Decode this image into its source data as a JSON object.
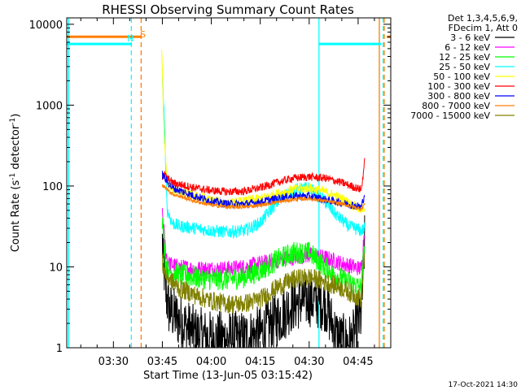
{
  "chart_data": {
    "type": "line",
    "title": "RHESSI Observing Summary Count Rates",
    "xlabel": "Start Time (13-Jun-05 03:15:42)",
    "ylabel_main": "Count Rate (s",
    "ylabel_sup1": "-1",
    "ylabel_mid": " detector",
    "ylabel_sup2": "-1",
    "ylabel_end": ")",
    "yscale": "log",
    "ylim": [
      1,
      12000
    ],
    "xlim_minutes": [
      195.7,
      295.0
    ],
    "xticks": [
      {
        "label": "03:30",
        "value": 210
      },
      {
        "label": "03:45",
        "value": 225
      },
      {
        "label": "04:00",
        "value": 240
      },
      {
        "label": "04:15",
        "value": 255
      },
      {
        "label": "04:30",
        "value": 270
      },
      {
        "label": "04:45",
        "value": 285
      }
    ],
    "yticks": [
      {
        "label": "1",
        "value": 1
      },
      {
        "label": "10",
        "value": 10
      },
      {
        "label": "100",
        "value": 100
      },
      {
        "label": "1000",
        "value": 1000
      },
      {
        "label": "10000",
        "value": 10000
      }
    ],
    "legend_header": [
      "Det 1,3,4,5,6,9,",
      "FDecim 1, Att 0"
    ],
    "legend_placement": "right",
    "series": [
      {
        "name": "3 - 6 keV",
        "color": "#000000",
        "x": [
          225,
          226,
          227,
          230,
          235,
          240,
          245,
          250,
          255,
          260,
          265,
          270,
          275,
          278,
          280,
          283,
          286,
          287
        ],
        "y": [
          20,
          5,
          3,
          2.2,
          1.5,
          1.3,
          1.3,
          1.3,
          1.5,
          2.2,
          3.5,
          4,
          3.5,
          1.5,
          1.2,
          1.2,
          2.5,
          20
        ],
        "noise": 0.35
      },
      {
        "name": "6 - 12 keV",
        "color": "#ff00ff",
        "x": [
          225,
          226,
          227,
          230,
          235,
          240,
          245,
          250,
          255,
          260,
          265,
          270,
          275,
          280,
          286,
          287
        ],
        "y": [
          50,
          15,
          11,
          10,
          9.5,
          9.5,
          9.5,
          10,
          11,
          12,
          13,
          14,
          13,
          11,
          9.5,
          30
        ],
        "noise": 0.1
      },
      {
        "name": "12 - 25 keV",
        "color": "#00ff00",
        "x": [
          225,
          226,
          227,
          230,
          235,
          240,
          245,
          250,
          255,
          260,
          265,
          270,
          275,
          280,
          286,
          287
        ],
        "y": [
          40,
          11,
          9,
          8,
          7.5,
          7,
          7,
          7.5,
          9,
          12,
          15,
          15,
          10,
          7,
          5.5,
          20
        ],
        "noise": 0.14
      },
      {
        "name": "25 - 50 keV",
        "color": "#00ffff",
        "x": [
          225,
          225.7,
          226.5,
          228,
          230,
          235,
          240,
          245,
          250,
          255,
          258,
          262,
          266,
          270,
          274,
          278,
          282,
          286,
          287
        ],
        "y": [
          2500,
          500,
          50,
          35,
          32,
          30,
          28,
          27,
          28,
          35,
          50,
          75,
          90,
          95,
          70,
          45,
          32,
          28,
          30
        ],
        "noise": 0.08
      },
      {
        "name": "50 - 100 keV",
        "color": "#ffff00",
        "x": [
          224.8,
          225.5,
          226.5,
          228,
          235,
          245,
          255,
          260,
          265,
          270,
          275,
          280,
          286,
          287
        ],
        "y": [
          5000,
          500,
          110,
          90,
          75,
          60,
          70,
          80,
          90,
          95,
          85,
          70,
          50,
          55
        ],
        "noise": 0.06
      },
      {
        "name": "100 - 300 keV",
        "color": "#ff0000",
        "x": [
          225,
          225.5,
          226.5,
          228,
          235,
          240,
          245,
          250,
          255,
          260,
          265,
          270,
          275,
          280,
          286,
          287
        ],
        "y": [
          130,
          140,
          125,
          110,
          95,
          88,
          85,
          86,
          95,
          110,
          125,
          130,
          125,
          110,
          90,
          200
        ],
        "noise": 0.05
      },
      {
        "name": "300 - 800 keV",
        "color": "#0000ff",
        "x": [
          225,
          226,
          228,
          235,
          240,
          245,
          250,
          255,
          260,
          265,
          270,
          275,
          280,
          286,
          287
        ],
        "y": [
          140,
          120,
          95,
          75,
          65,
          60,
          60,
          63,
          70,
          75,
          75,
          68,
          62,
          55,
          80
        ],
        "noise": 0.05
      },
      {
        "name": "800 - 7000 keV",
        "color": "#ff7f00",
        "x": [
          225,
          226,
          228,
          235,
          240,
          245,
          250,
          255,
          260,
          265,
          270,
          275,
          280,
          286,
          287
        ],
        "y": [
          100,
          95,
          80,
          65,
          58,
          55,
          55,
          58,
          63,
          68,
          70,
          65,
          60,
          52,
          60
        ],
        "noise": 0.025
      },
      {
        "name": "7000 - 15000 keV",
        "color": "#808000",
        "x": [
          225,
          226,
          228,
          230,
          235,
          240,
          245,
          250,
          255,
          260,
          265,
          270,
          275,
          280,
          286,
          287
        ],
        "y": [
          11,
          8,
          6.5,
          5.5,
          4.5,
          3.8,
          3.5,
          3.5,
          4,
          5.5,
          7,
          7.5,
          6.5,
          5.5,
          4,
          15
        ],
        "noise": 0.12
      }
    ],
    "annotations": [
      {
        "label": "S",
        "color": "#ff7f00"
      },
      {
        "label": "N",
        "color": "#00ffff"
      }
    ],
    "flag_bars": [
      {
        "name": "saa-flag-bar",
        "color": "#ff7f00",
        "y": 7000,
        "ranges": [
          [
            195.7,
            218.5
          ],
          [
            293.8,
            295
          ]
        ]
      },
      {
        "name": "night-flag-bar",
        "color": "#00ffff",
        "y": 5700,
        "ranges": [
          [
            195.7,
            215.5
          ],
          [
            273,
            292
          ]
        ]
      }
    ],
    "vlines": [
      {
        "name": "saa-start-line",
        "x": 218.5,
        "color": "#ff7f00",
        "style": "dashed"
      },
      {
        "name": "saa-end-line",
        "x": 293,
        "color": "#ff7f00",
        "style": "dashed"
      },
      {
        "name": "night-start-line",
        "x": 215.5,
        "color": "#00ffff",
        "style": "dashed"
      },
      {
        "name": "night-end-line",
        "x": 292.7,
        "color": "#00ffff",
        "style": "dashed"
      },
      {
        "name": "day-start-line",
        "x": 273,
        "color": "#00ffff",
        "style": "solid"
      },
      {
        "name": "saa-solid-line",
        "x": 291.5,
        "color": "#ff7f00",
        "style": "solid"
      },
      {
        "name": "left-day-line",
        "x": 196.3,
        "color": "#00ffff",
        "style": "solid"
      }
    ]
  },
  "footer": {
    "timestamp": "17-Oct-2021 14:30"
  }
}
